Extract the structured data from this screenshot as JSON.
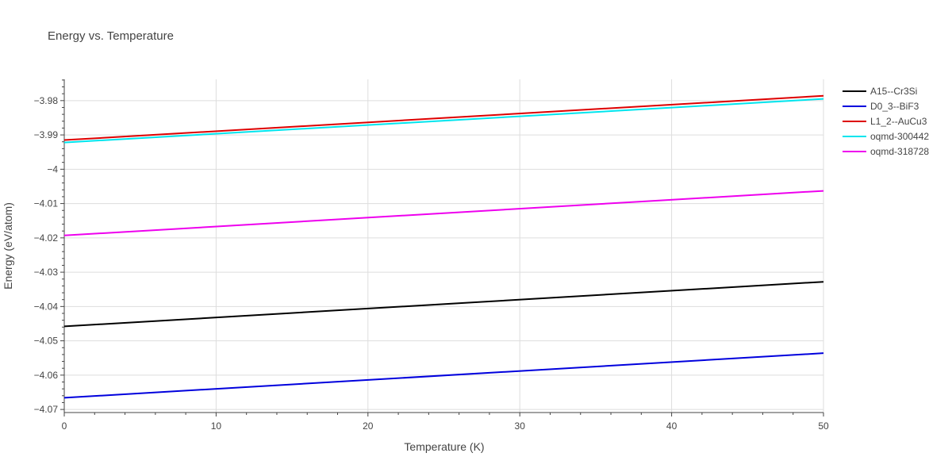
{
  "chart_data": {
    "type": "line",
    "title": "Energy vs. Temperature",
    "xlabel": "Temperature (K)",
    "ylabel": "Energy (eV/atom)",
    "xlim": [
      0,
      50
    ],
    "ylim": [
      -4.0709,
      -3.9738
    ],
    "x_ticks": [
      0,
      10,
      20,
      30,
      40,
      50
    ],
    "y_ticks": [
      -3.98,
      -3.99,
      -4.0,
      -4.01,
      -4.02,
      -4.03,
      -4.04,
      -4.05,
      -4.06,
      -4.07
    ],
    "y_tick_labels": [
      "−3.98",
      "−3.99",
      "−4",
      "−4.01",
      "−4.02",
      "−4.03",
      "−4.04",
      "−4.05",
      "−4.06",
      "−4.07"
    ],
    "grid": true,
    "legend_position": "top-right",
    "series": [
      {
        "name": "A15--Cr3Si",
        "color": "#000000",
        "x": [
          0,
          50
        ],
        "y": [
          -4.0458,
          -4.0328
        ]
      },
      {
        "name": "D0_3--BiF3",
        "color": "#0000dd",
        "x": [
          0,
          50
        ],
        "y": [
          -4.0666,
          -4.0536
        ]
      },
      {
        "name": "L1_2--AuCu3",
        "color": "#dd0000",
        "x": [
          0,
          50
        ],
        "y": [
          -3.9915,
          -3.9786
        ]
      },
      {
        "name": "oqmd-300442",
        "color": "#00e5ee",
        "x": [
          0,
          50
        ],
        "y": [
          -3.9922,
          -3.9795
        ]
      },
      {
        "name": "oqmd-318728",
        "color": "#ee00ee",
        "x": [
          0,
          50
        ],
        "y": [
          -4.0193,
          -4.0063
        ]
      }
    ]
  }
}
